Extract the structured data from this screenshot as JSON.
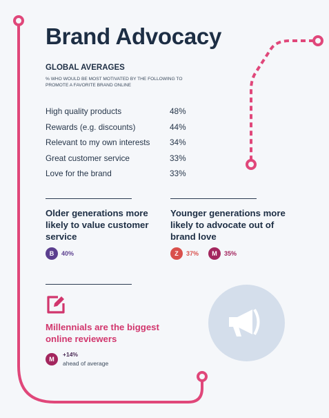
{
  "header": {
    "title": "Brand Advocacy",
    "section_label": "GLOBAL AVERAGES",
    "section_subtitle": "% WHO WOULD BE MOST MOTIVATED BY THE FOLLOWING TO PROMOTE A FAVORITE BRAND ONLINE"
  },
  "stats": [
    {
      "label": "High quality products",
      "value": "48%"
    },
    {
      "label": "Rewards (e.g. discounts)",
      "value": "44%"
    },
    {
      "label": "Relevant to my own interests",
      "value": "34%"
    },
    {
      "label": "Great customer service",
      "value": "33%"
    },
    {
      "label": "Love for the brand",
      "value": "33%"
    }
  ],
  "older": {
    "title": "Older generations more likely to value customer service",
    "badges": [
      {
        "letter": "B",
        "value": "40%",
        "color": "#5b3f8f",
        "value_color": "#5b3f8f"
      }
    ]
  },
  "younger": {
    "title": "Younger generations more likely to advocate out of brand love",
    "badges": [
      {
        "letter": "Z",
        "value": "37%",
        "color": "#d9504c",
        "value_color": "#d9504c"
      },
      {
        "letter": "M",
        "value": "35%",
        "color": "#a3265e",
        "value_color": "#a3265e"
      }
    ]
  },
  "millennials": {
    "title": "Millennials are the biggest online reviewers",
    "badge_letter": "M",
    "value": "+14%",
    "subtext": "ahead of average"
  },
  "icons": {
    "edit": "edit-icon",
    "megaphone": "megaphone-icon"
  },
  "colors": {
    "accent_pink": "#e0477a",
    "navy": "#1d2e44",
    "circle_bg": "#d4deeb"
  }
}
